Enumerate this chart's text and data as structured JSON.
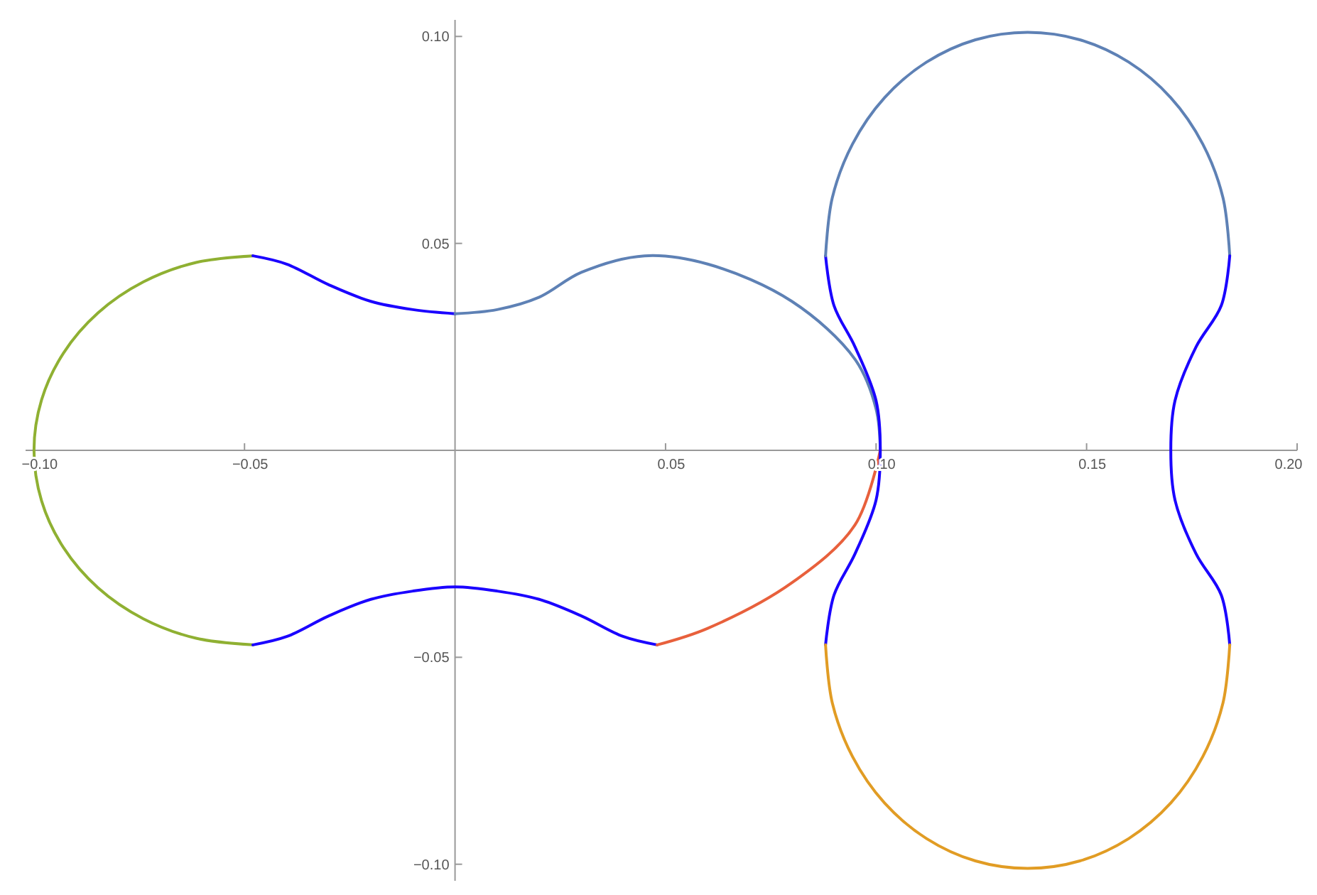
{
  "chart_data": {
    "type": "line",
    "xlim": [
      -0.102,
      0.2
    ],
    "ylim": [
      -0.104,
      0.104
    ],
    "xticks": [
      {
        "value": -0.1,
        "label": "−0.10"
      },
      {
        "value": -0.05,
        "label": "−0.05"
      },
      {
        "value": 0.05,
        "label": "0.05"
      },
      {
        "value": 0.1,
        "label": "0.10"
      },
      {
        "value": 0.15,
        "label": "0.15"
      },
      {
        "value": 0.2,
        "label": "0.20"
      }
    ],
    "yticks": [
      {
        "value": -0.1,
        "label": "−0.10"
      },
      {
        "value": -0.05,
        "label": "−0.05"
      },
      {
        "value": 0.05,
        "label": "0.05"
      },
      {
        "value": 0.1,
        "label": "0.10"
      }
    ],
    "grid": false,
    "marker": "none",
    "line_style": "solid",
    "series": [
      {
        "color": "#8fb032",
        "x": [
          -0.048,
          -0.0615,
          -0.074,
          -0.0848,
          -0.093,
          -0.0982,
          -0.1,
          -0.0982,
          -0.093,
          -0.0848,
          -0.074,
          -0.0615,
          -0.048
        ],
        "values": [
          0.047,
          0.0454,
          0.0407,
          0.0332,
          0.0235,
          0.0122,
          0,
          -0.0122,
          -0.0235,
          -0.0332,
          -0.0407,
          -0.0454,
          -0.047
        ]
      },
      {
        "color": "#1a00ff",
        "x": [
          -0.048,
          -0.04,
          -0.03,
          -0.02,
          -0.01,
          0
        ],
        "values": [
          0.047,
          0.045,
          0.04,
          0.036,
          0.034,
          0.033
        ]
      },
      {
        "color": "#5e81b5",
        "x": [
          0,
          0.01,
          0.02,
          0.03,
          0.045,
          0.06,
          0.08,
          0.095,
          0.1,
          0.101
        ],
        "values": [
          0.033,
          0.034,
          0.037,
          0.043,
          0.047,
          0.045,
          0.036,
          0.022,
          0.01,
          0
        ]
      },
      {
        "color": "#1a00ff",
        "x": [
          -0.048,
          -0.04,
          -0.03,
          -0.02,
          -0.01,
          0,
          0.01,
          0.02,
          0.03,
          0.04,
          0.048
        ],
        "values": [
          -0.047,
          -0.045,
          -0.04,
          -0.036,
          -0.034,
          -0.033,
          -0.034,
          -0.036,
          -0.04,
          -0.045,
          -0.047
        ]
      },
      {
        "color": "#e8603c",
        "x": [
          0.048,
          0.06,
          0.08,
          0.095,
          0.101
        ],
        "values": [
          -0.047,
          -0.043,
          -0.032,
          -0.018,
          0
        ]
      },
      {
        "color": "#1a00ff",
        "x": [
          0.088,
          0.09,
          0.095,
          0.1,
          0.101,
          0.1,
          0.095,
          0.09,
          0.088
        ],
        "values": [
          0.047,
          0.035,
          0.025,
          0.012,
          0,
          -0.012,
          -0.025,
          -0.035,
          -0.047
        ]
      },
      {
        "color": "#5e81b5",
        "x": [
          0.088,
          0.0896,
          0.0944,
          0.102,
          0.112,
          0.1236,
          0.136,
          0.1484,
          0.16,
          0.17,
          0.1776,
          0.1824,
          0.184
        ],
        "values": [
          0.047,
          0.061,
          0.074,
          0.0852,
          0.0938,
          0.0992,
          0.101,
          0.0992,
          0.0938,
          0.0852,
          0.074,
          0.061,
          0.047
        ]
      },
      {
        "color": "#1a00ff",
        "x": [
          0.184,
          0.182,
          0.176,
          0.171,
          0.17,
          0.171,
          0.176,
          0.182,
          0.184
        ],
        "values": [
          0.047,
          0.035,
          0.025,
          0.012,
          0,
          -0.012,
          -0.025,
          -0.035,
          -0.047
        ]
      },
      {
        "color": "#e19c24",
        "x": [
          0.088,
          0.0896,
          0.0944,
          0.102,
          0.112,
          0.1236,
          0.136,
          0.1484,
          0.16,
          0.17,
          0.1776,
          0.1824,
          0.184
        ],
        "values": [
          -0.047,
          -0.061,
          -0.074,
          -0.0852,
          -0.0938,
          -0.0992,
          -0.101,
          -0.0992,
          -0.0938,
          -0.0852,
          -0.074,
          -0.061,
          -0.047
        ]
      }
    ]
  }
}
